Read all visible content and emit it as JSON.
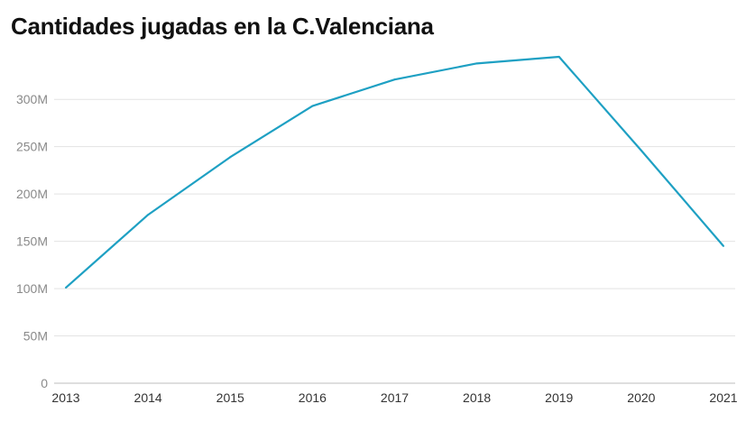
{
  "chart_data": {
    "type": "line",
    "title": "Cantidades jugadas en la C.Valenciana",
    "xlabel": "",
    "ylabel": "",
    "categories": [
      "2013",
      "2014",
      "2015",
      "2016",
      "2017",
      "2018",
      "2019",
      "2020",
      "2021"
    ],
    "series": [
      {
        "name": "",
        "color": "#1ea0c3",
        "values": [
          101000000,
          178000000,
          239000000,
          293000000,
          321000000,
          338000000,
          345000000,
          246000000,
          145000000
        ]
      }
    ],
    "ylim": [
      0,
      345000000
    ],
    "yticks": [
      0,
      50000000,
      100000000,
      150000000,
      200000000,
      250000000,
      300000000
    ],
    "ytick_labels": [
      "0",
      "50M",
      "100M",
      "150M",
      "200M",
      "250M",
      "300M"
    ],
    "grid": true,
    "legend": "none"
  }
}
